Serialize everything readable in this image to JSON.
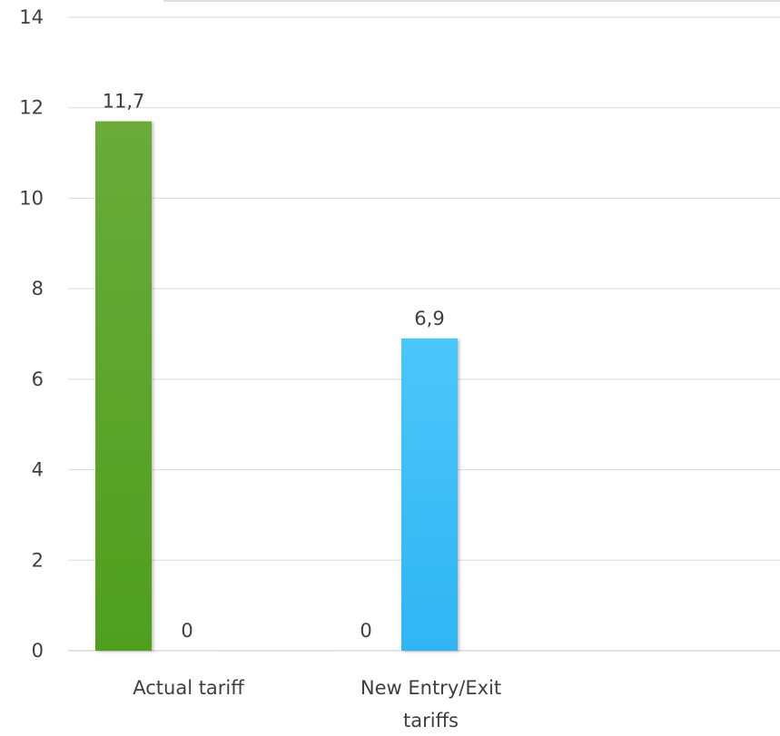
{
  "chart_data": {
    "type": "bar",
    "title": "",
    "xlabel": "",
    "ylabel": "",
    "ylim": [
      0,
      14
    ],
    "yticks": [
      0,
      2,
      4,
      6,
      8,
      10,
      12,
      14
    ],
    "grid": true,
    "legend": "none",
    "categories": [
      {
        "label_lines": [
          "Actual tariff"
        ]
      },
      {
        "label_lines": [
          "New Entry/Exit",
          "tariffs"
        ]
      }
    ],
    "series": [
      {
        "values": [
          11.7,
          0
        ],
        "labels": [
          "11,7",
          "0"
        ],
        "color": "#5aa52c"
      },
      {
        "values": [
          0,
          6.9
        ],
        "labels": [
          "0",
          "6,9"
        ],
        "color": "#3cbcf6"
      }
    ]
  }
}
